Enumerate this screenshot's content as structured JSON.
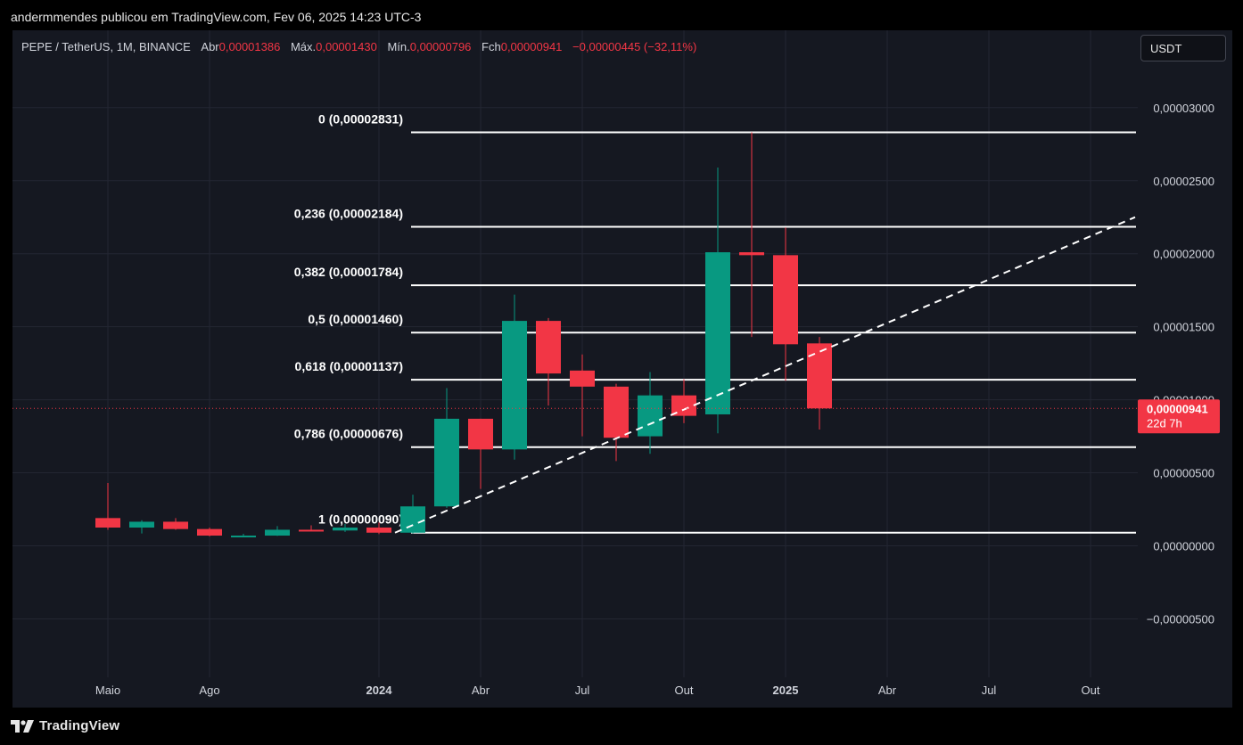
{
  "header": {
    "publisher": "andermmendes publicou em TradingView.com, Fev 06, 2025 14:23 UTC-3"
  },
  "legend": {
    "symbol": "PEPE / TetherUS, 1M, BINANCE",
    "open_label": "Abr",
    "open_value": "0,00001386",
    "high_label": "Máx.",
    "high_value": "0,00001430",
    "low_label": "Mín.",
    "low_value": "0,00000796",
    "close_label": "Fch",
    "close_value": "0,00000941",
    "change": "−0,00000445 (−32,11%)"
  },
  "currency_button": "USDT",
  "price_tag": {
    "price": "0,00000941",
    "countdown": "22d 7h"
  },
  "footer": {
    "brand": "TradingView"
  },
  "colors": {
    "up": "#089981",
    "down": "#f23645",
    "background": "#151821",
    "grid": "#232632",
    "fib": "#ffffff"
  },
  "chart_data": {
    "type": "candlestick",
    "y_tick_labels": [
      "0,00003000",
      "0,00002500",
      "0,00002000",
      "0,00001500",
      "0,00001000",
      "0,00000500",
      "0,00000000",
      "−0,00000500"
    ],
    "y_ticks": [
      3e-05,
      2.5e-05,
      2e-05,
      1.5e-05,
      1e-05,
      5e-06,
      0,
      -5e-06
    ],
    "x_tick_labels": [
      {
        "label": "Maio",
        "month": "2023-05",
        "bold": false
      },
      {
        "label": "Ago",
        "month": "2023-08",
        "bold": false
      },
      {
        "label": "2024",
        "month": "2024-01",
        "bold": true
      },
      {
        "label": "Abr",
        "month": "2024-04",
        "bold": false
      },
      {
        "label": "Jul",
        "month": "2024-07",
        "bold": false
      },
      {
        "label": "Out",
        "month": "2024-10",
        "bold": false
      },
      {
        "label": "2025",
        "month": "2025-01",
        "bold": true
      },
      {
        "label": "Abr",
        "month": "2025-04",
        "bold": false
      },
      {
        "label": "Jul",
        "month": "2025-07",
        "bold": false
      },
      {
        "label": "Out",
        "month": "2025-10",
        "bold": false
      }
    ],
    "candles": [
      {
        "month": "2023-05",
        "o": 1.9e-06,
        "h": 4.3e-06,
        "l": 1.1e-06,
        "c": 1.25e-06
      },
      {
        "month": "2023-06",
        "o": 1.25e-06,
        "h": 1.75e-06,
        "l": 8.5e-07,
        "c": 1.65e-06
      },
      {
        "month": "2023-07",
        "o": 1.65e-06,
        "h": 1.9e-06,
        "l": 1.1e-06,
        "c": 1.15e-06
      },
      {
        "month": "2023-08",
        "o": 1.15e-06,
        "h": 1.25e-06,
        "l": 6.5e-07,
        "c": 7e-07
      },
      {
        "month": "2023-09",
        "o": 7e-07,
        "h": 8.2e-07,
        "l": 6e-07,
        "c": 7e-07
      },
      {
        "month": "2023-10",
        "o": 7e-07,
        "h": 1.35e-06,
        "l": 6.8e-07,
        "c": 1.1e-06
      },
      {
        "month": "2023-11",
        "o": 1.1e-06,
        "h": 1.4e-06,
        "l": 1e-06,
        "c": 1.05e-06
      },
      {
        "month": "2023-12",
        "o": 1.05e-06,
        "h": 1.5e-06,
        "l": 9.5e-07,
        "c": 1.25e-06
      },
      {
        "month": "2024-01",
        "o": 1.25e-06,
        "h": 1.6e-06,
        "l": 8e-07,
        "c": 9e-07
      },
      {
        "month": "2024-02",
        "o": 9e-07,
        "h": 3.5e-06,
        "l": 8.5e-07,
        "c": 2.7e-06
      },
      {
        "month": "2024-03",
        "o": 2.7e-06,
        "h": 1.08e-05,
        "l": 2.6e-06,
        "c": 8.7e-06
      },
      {
        "month": "2024-04",
        "o": 8.7e-06,
        "h": 8.7e-06,
        "l": 3.9e-06,
        "c": 6.6e-06
      },
      {
        "month": "2024-05",
        "o": 6.6e-06,
        "h": 1.72e-05,
        "l": 5.9e-06,
        "c": 1.54e-05
      },
      {
        "month": "2024-06",
        "o": 1.54e-05,
        "h": 1.56e-05,
        "l": 9.6e-06,
        "c": 1.18e-05
      },
      {
        "month": "2024-07",
        "o": 1.2e-05,
        "h": 1.31e-05,
        "l": 7.5e-06,
        "c": 1.09e-05
      },
      {
        "month": "2024-08",
        "o": 1.09e-05,
        "h": 1.11e-05,
        "l": 5.8e-06,
        "c": 7.4e-06
      },
      {
        "month": "2024-09",
        "o": 7.5e-06,
        "h": 1.19e-05,
        "l": 6.3e-06,
        "c": 1.03e-05
      },
      {
        "month": "2024-10",
        "o": 1.03e-05,
        "h": 1.14e-05,
        "l": 8.4e-06,
        "c": 8.9e-06
      },
      {
        "month": "2024-11",
        "o": 9e-06,
        "h": 2.59e-05,
        "l": 7.7e-06,
        "c": 2.01e-05
      },
      {
        "month": "2024-12",
        "o": 2.01e-05,
        "h": 2.831e-05,
        "l": 1.43e-05,
        "c": 1.99e-05
      },
      {
        "month": "2025-01",
        "o": 1.99e-05,
        "h": 2.18e-05,
        "l": 1.13e-05,
        "c": 1.38e-05
      },
      {
        "month": "2025-02",
        "o": 1.386e-05,
        "h": 1.43e-05,
        "l": 7.96e-06,
        "c": 9.41e-06
      }
    ],
    "fibonacci": {
      "start_month": "2024-01",
      "end_month": "2025-10",
      "levels": [
        {
          "ratio": "0",
          "price": 2.831e-05,
          "label": "0 (0,00002831)"
        },
        {
          "ratio": "0.236",
          "price": 2.184e-05,
          "label": "0,236 (0,00002184)"
        },
        {
          "ratio": "0.382",
          "price": 1.784e-05,
          "label": "0,382 (0,00001784)"
        },
        {
          "ratio": "0.5",
          "price": 1.46e-05,
          "label": "0,5 (0,00001460)"
        },
        {
          "ratio": "0.618",
          "price": 1.137e-05,
          "label": "0,618 (0,00001137)"
        },
        {
          "ratio": "0.786",
          "price": 6.76e-06,
          "label": "0,786 (0,00000676)"
        },
        {
          "ratio": "1",
          "price": 9e-07,
          "label": "1 (0,00000090)"
        }
      ]
    },
    "trendline": {
      "start": {
        "month": "2024-01",
        "price": 9e-07
      },
      "end": {
        "month": "2025-10",
        "price": 2.25e-05
      },
      "style": "dashed"
    },
    "last_price": 9.41e-06,
    "yrange": [
      -9e-06,
      3.31e-05
    ]
  }
}
